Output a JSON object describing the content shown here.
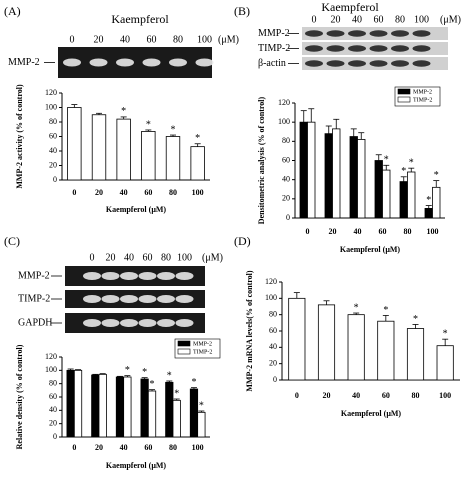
{
  "chart_data": [
    {
      "type": "bar",
      "panel": "(A)",
      "blot": {
        "title": "Kaempferol",
        "lanes": [
          "0",
          "20",
          "40",
          "60",
          "80",
          "100"
        ],
        "unit": "(μM)",
        "rows": [
          "MMP-2"
        ]
      },
      "categories": [
        "0",
        "20",
        "40",
        "60",
        "80",
        "100"
      ],
      "series": [
        {
          "color": "#ffffff",
          "values": [
            100,
            90,
            84,
            67,
            60,
            46
          ],
          "errors": [
            4,
            2,
            3,
            2,
            2,
            4
          ],
          "significance": [
            null,
            null,
            "*",
            "*",
            "*",
            "*"
          ]
        }
      ],
      "x_label": "Kaempferol (μM)",
      "y_label": "MMP-2 activity (% of control)",
      "ylim": [
        0,
        120
      ],
      "yticks": [
        0,
        20,
        40,
        60,
        80,
        100,
        120
      ],
      "legend": false
    },
    {
      "type": "bar",
      "panel": "(B)",
      "blot": {
        "title": "Kaempferol",
        "lanes": [
          "0",
          "20",
          "40",
          "60",
          "80",
          "100"
        ],
        "unit": "(μM)",
        "rows": [
          "MMP-2",
          "TIMP-2",
          "β-actin"
        ]
      },
      "categories": [
        "0",
        "20",
        "40",
        "60",
        "80",
        "100"
      ],
      "series": [
        {
          "name": "MMP-2",
          "color": "#000000",
          "values": [
            100,
            88,
            85,
            60,
            38,
            10
          ],
          "errors": [
            12,
            8,
            8,
            6,
            5,
            3
          ],
          "significance": [
            null,
            null,
            null,
            null,
            "*",
            "*"
          ]
        },
        {
          "name": "TIMP-2",
          "color": "#ffffff",
          "values": [
            100,
            93,
            82,
            50,
            48,
            32
          ],
          "errors": [
            14,
            10,
            7,
            5,
            4,
            7
          ],
          "significance": [
            null,
            null,
            null,
            "*",
            "*",
            "*"
          ]
        }
      ],
      "x_label": "Kaempferol (μM)",
      "y_label": "Densitometric analysis (% of control)",
      "ylim": [
        0,
        120
      ],
      "yticks": [
        0,
        20,
        40,
        60,
        80,
        100,
        120
      ],
      "legend": "upper right"
    },
    {
      "type": "bar",
      "panel": "(C)",
      "blot": {
        "lanes": [
          "0",
          "20",
          "40",
          "60",
          "80",
          "100"
        ],
        "unit": "(μM)",
        "rows": [
          "MMP-2",
          "TIMP-2",
          "GAPDH"
        ]
      },
      "categories": [
        "0",
        "20",
        "40",
        "60",
        "80",
        "100"
      ],
      "series": [
        {
          "name": "MMP-2",
          "color": "#000000",
          "values": [
            100,
            93,
            90,
            87,
            82,
            72
          ],
          "errors": [
            2,
            1,
            1,
            2,
            2,
            2
          ],
          "significance": [
            null,
            null,
            null,
            "*",
            "*",
            "*"
          ]
        },
        {
          "name": "TIMP-2",
          "color": "#ffffff",
          "values": [
            100,
            94,
            90,
            69,
            55,
            37
          ],
          "errors": [
            1,
            1,
            2,
            2,
            2,
            2
          ],
          "significance": [
            null,
            null,
            "*",
            "*",
            "*",
            "*"
          ]
        }
      ],
      "x_label": "Kaempferol (μM)",
      "y_label": "Relative density (% of control)",
      "ylim": [
        0,
        120
      ],
      "yticks": [
        0,
        20,
        40,
        60,
        80,
        100,
        120
      ],
      "legend": "upper right"
    },
    {
      "type": "bar",
      "panel": "(D)",
      "categories": [
        "0",
        "20",
        "40",
        "60",
        "80",
        "100"
      ],
      "series": [
        {
          "color": "#ffffff",
          "values": [
            100,
            92,
            80,
            72,
            63,
            42
          ],
          "errors": [
            7,
            5,
            2,
            7,
            5,
            8
          ],
          "significance": [
            null,
            null,
            "*",
            "*",
            "*",
            "*"
          ]
        }
      ],
      "x_label": "Kaempferol (μM)",
      "y_label": "MMP-2 mRNA levels(% of control)",
      "ylim": [
        0,
        120
      ],
      "yticks": [
        0,
        20,
        40,
        60,
        80,
        100,
        120
      ],
      "legend": false
    }
  ]
}
